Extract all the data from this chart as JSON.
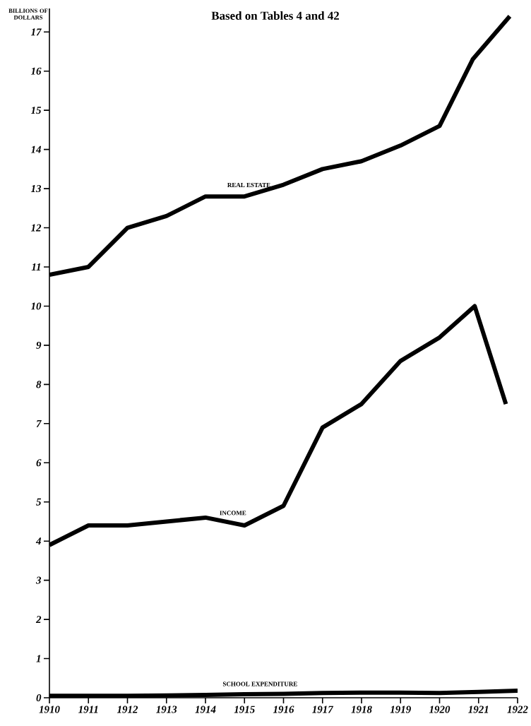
{
  "chart_data": {
    "type": "line",
    "title": "Based on Tables 4 and 42",
    "ylabel": "BILLIONS OF DOLLARS",
    "xlim": [
      1910,
      1922
    ],
    "xticks": [
      1910,
      1911,
      1912,
      1913,
      1914,
      1915,
      1916,
      1917,
      1918,
      1919,
      1920,
      1921,
      1922
    ],
    "ylim": [
      0,
      17.6
    ],
    "yticks": [
      0,
      1,
      2,
      3,
      4,
      5,
      6,
      7,
      8,
      9,
      10,
      11,
      12,
      13,
      14,
      15,
      16,
      17
    ],
    "grid": false,
    "marker": "none",
    "line_style": "solid",
    "series": [
      {
        "name": "REAL ESTATE",
        "color": "#000000",
        "x": [
          1910,
          1911,
          1912,
          1913,
          1914,
          1915,
          1916,
          1917,
          1918,
          1919,
          1920,
          1920.85,
          1921.8
        ],
        "values": [
          10.8,
          11.0,
          12.0,
          12.3,
          12.8,
          12.8,
          13.1,
          13.5,
          13.7,
          14.1,
          14.6,
          16.3,
          17.4
        ]
      },
      {
        "name": "INCOME",
        "color": "#000000",
        "x": [
          1910,
          1911,
          1912,
          1913,
          1914,
          1915,
          1916,
          1917,
          1918,
          1919,
          1920,
          1920.9,
          1921.7
        ],
        "values": [
          3.9,
          4.4,
          4.4,
          4.5,
          4.6,
          4.4,
          4.9,
          6.9,
          7.5,
          8.6,
          9.2,
          10.0,
          7.5
        ]
      },
      {
        "name": "SCHOOL EXPENDITURE",
        "color": "#000000",
        "x": [
          1910,
          1911,
          1912,
          1913,
          1914,
          1915,
          1916,
          1917,
          1918,
          1919,
          1920,
          1921,
          1922
        ],
        "values": [
          0.05,
          0.05,
          0.05,
          0.06,
          0.07,
          0.09,
          0.1,
          0.12,
          0.13,
          0.13,
          0.12,
          0.15,
          0.18
        ]
      }
    ]
  }
}
